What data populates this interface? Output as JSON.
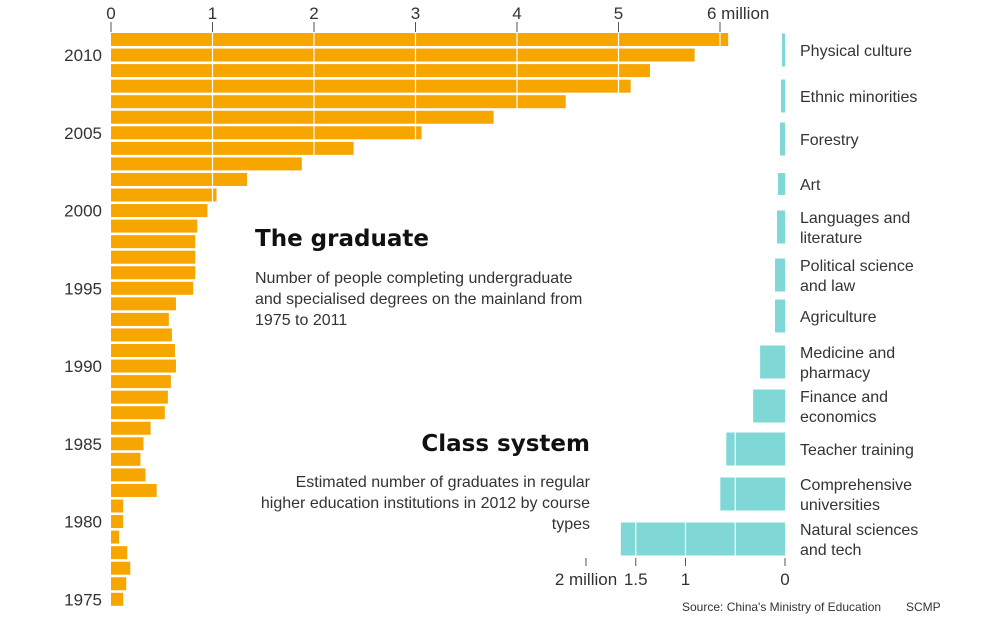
{
  "colors": {
    "orange": "#F7A600",
    "teal": "#7FD8D6",
    "grid": "#ffffff",
    "text": "#333333"
  },
  "graduate": {
    "title": "The graduate",
    "subtitle": "Number of people completing undergraduate and specialised degrees on the mainland from 1975 to 2011"
  },
  "class_system": {
    "title": "Class system",
    "subtitle": "Estimated number of graduates in regular higher education institutions in 2012 by course types"
  },
  "footer": {
    "source": "Source: China's Ministry of Education",
    "brand": "SCMP"
  },
  "chart_data": [
    {
      "type": "bar",
      "orientation": "horizontal",
      "title": "The graduate",
      "x_ticks": [
        "0",
        "1",
        "2",
        "3",
        "4",
        "5",
        "6 million"
      ],
      "xlim": [
        0,
        6
      ],
      "unit": "million",
      "year_labels": [
        "2010",
        "2005",
        "2000",
        "1995",
        "1990",
        "1985",
        "1980",
        "1975"
      ],
      "categories": [
        2011,
        2010,
        2009,
        2008,
        2007,
        2006,
        2005,
        2004,
        2003,
        2002,
        2001,
        2000,
        1999,
        1998,
        1997,
        1996,
        1995,
        1994,
        1993,
        1992,
        1991,
        1990,
        1989,
        1988,
        1987,
        1986,
        1985,
        1984,
        1983,
        1982,
        1981,
        1980,
        1979,
        1978,
        1977,
        1976,
        1975
      ],
      "values": [
        6.08,
        5.75,
        5.31,
        5.12,
        4.48,
        3.77,
        3.06,
        2.39,
        1.88,
        1.34,
        1.04,
        0.95,
        0.85,
        0.83,
        0.83,
        0.83,
        0.81,
        0.64,
        0.57,
        0.6,
        0.63,
        0.64,
        0.59,
        0.56,
        0.53,
        0.39,
        0.32,
        0.29,
        0.34,
        0.45,
        0.12,
        0.12,
        0.08,
        0.16,
        0.19,
        0.15,
        0.12
      ],
      "color": "#F7A600",
      "grid": true
    },
    {
      "type": "bar",
      "orientation": "horizontal",
      "direction": "right-to-left",
      "title": "Class system",
      "x_ticks": [
        "2 million",
        "1.5",
        "1",
        "0"
      ],
      "xlim": [
        0,
        2
      ],
      "unit": "million",
      "categories": [
        "Physical culture",
        "Ethnic minorities",
        "Forestry",
        "Art",
        "Languages and literature",
        "Political science and law",
        "Agriculture",
        "Medicine and pharmacy",
        "Finance and economics",
        "Teacher training",
        "Comprehensive universities",
        "Natural sciences and tech"
      ],
      "values": [
        0.02,
        0.04,
        0.05,
        0.07,
        0.08,
        0.1,
        0.1,
        0.25,
        0.32,
        0.59,
        0.65,
        1.65
      ],
      "color": "#7FD8D6",
      "grid": true
    }
  ]
}
